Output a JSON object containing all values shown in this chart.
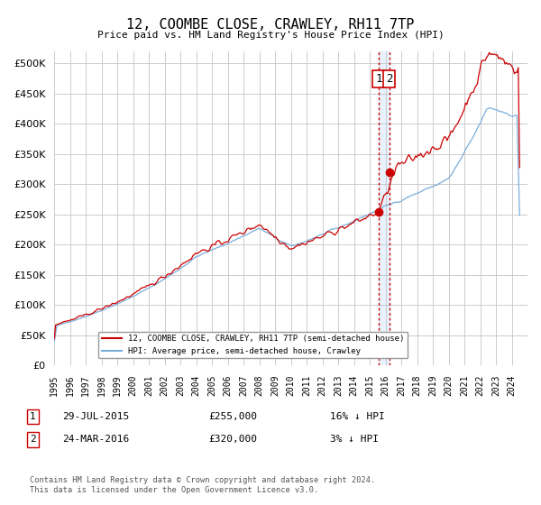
{
  "title": "12, COOMBE CLOSE, CRAWLEY, RH11 7TP",
  "subtitle": "Price paid vs. HM Land Registry's House Price Index (HPI)",
  "yticks": [
    0,
    50000,
    100000,
    150000,
    200000,
    250000,
    300000,
    350000,
    400000,
    450000,
    500000
  ],
  "ylim": [
    0,
    520000
  ],
  "xlim_start": 1995.0,
  "xlim_end": 2025.0,
  "sale1_date": 2015.57,
  "sale1_price": 255000,
  "sale2_date": 2016.23,
  "sale2_price": 320000,
  "line_price_color": "#cc0000",
  "line_hpi_color": "#7aaddb",
  "vline_color": "#cc0000",
  "shade_color": "#aaccee",
  "dot_color": "#cc0000",
  "legend_label_price": "12, COOMBE CLOSE, CRAWLEY, RH11 7TP (semi-detached house)",
  "legend_label_hpi": "HPI: Average price, semi-detached house, Crawley",
  "footer": "Contains HM Land Registry data © Crown copyright and database right 2024.\nThis data is licensed under the Open Government Licence v3.0.",
  "bg_color": "#ffffff",
  "grid_color": "#cccccc"
}
